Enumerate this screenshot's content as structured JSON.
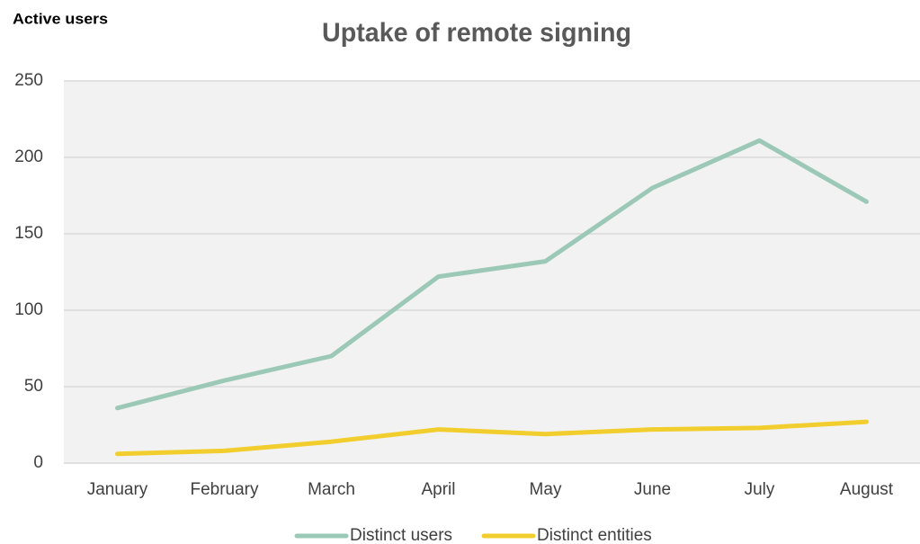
{
  "chart_data": {
    "type": "line",
    "title": "Uptake of remote signing",
    "y_label": "Active users",
    "categories": [
      "January",
      "February",
      "March",
      "April",
      "May",
      "June",
      "July",
      "August"
    ],
    "series": [
      {
        "name": "Distinct users",
        "color": "#9cc9b7",
        "values": [
          36,
          54,
          70,
          122,
          132,
          180,
          211,
          171
        ]
      },
      {
        "name": "Distinct entities",
        "color": "#f2cd2e",
        "values": [
          6,
          8,
          14,
          22,
          19,
          22,
          23,
          27
        ]
      }
    ],
    "ylim": [
      0,
      250
    ],
    "yticks": [
      0,
      50,
      100,
      150,
      200,
      250
    ],
    "grid": true,
    "legend": "bottom"
  }
}
